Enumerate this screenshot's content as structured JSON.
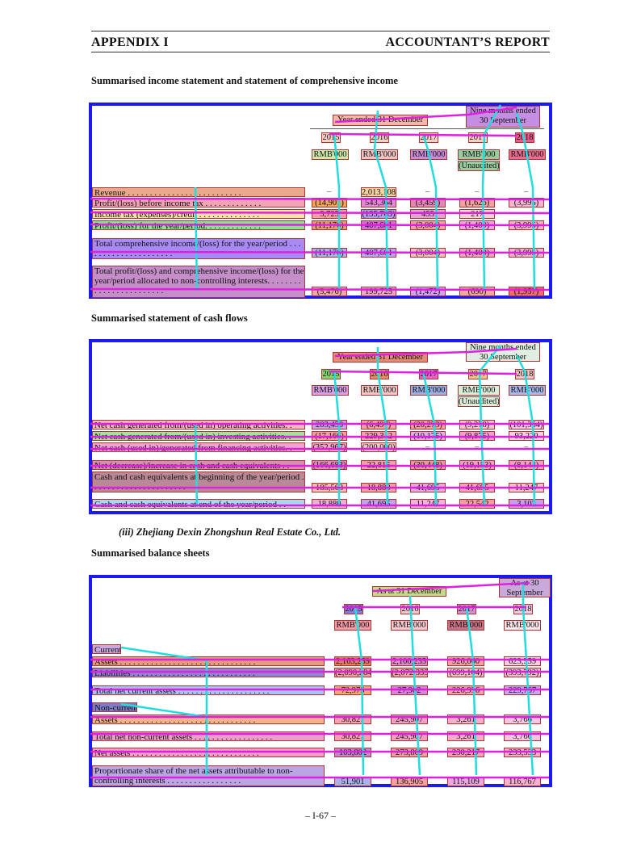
{
  "header": {
    "left": "APPENDIX I",
    "right": "ACCOUNTANT’S REPORT"
  },
  "income": {
    "title": "Summarised income statement and statement of comprehensive income",
    "group_label": "Year ended 31 December",
    "nine_label": "Nine months ended 30 September",
    "years": [
      "2015",
      "2016",
      "2017",
      "2017",
      "2018"
    ],
    "units": [
      "RMB'000",
      "RMB'000",
      "RMB'000",
      "RMB'000",
      "RMB'000"
    ],
    "unaudited": "(Unaudited)",
    "rows": [
      {
        "label": "Revenue . . . . . . . . . . . . . . . . . . . . . . . . . .",
        "values": [
          "–",
          "2,013,108",
          "–",
          "–",
          "–"
        ]
      },
      {
        "label": "Profit/(loss) before income tax . . . . . . . . . . . . .",
        "values": "(14,901)|543,364|(3,459)|(1,626)|(3,995)"
      },
      {
        "label": "Income tax (expenses)/credit . . . . . . . . . . . . . .",
        "values": "3,725|(135,763)|455|217|–"
      },
      {
        "label": "Profit/(loss) for the year/period. . . . . . . . . . . . .",
        "values": "(11,176)|407,601|(3,004)|(1,409)|(3,995)"
      },
      {
        "label": "Total comprehensive income/(loss) for the year/period . . . . . . . . . . . . . . . . . . . . .",
        "values": "(11,176)|407,601|(3,004)|(1,409)|(3,995)"
      },
      {
        "label": "Total profit/(loss) and comprehensive income/(loss) for the year/period allocated to non-controlling interests. . . . . . . . . . . . . . . . . . . . . . . .",
        "values": "(5,476)|199,725|(1,472)|(690)|(1,957)"
      }
    ]
  },
  "cash": {
    "title": "Summarised statement of cash flows",
    "group_label": "Year ended 31 December",
    "nine_label": "Nine months ended 30 September",
    "years": [
      "2015",
      "2016",
      "2017",
      "2017",
      "2018"
    ],
    "units": [
      "RMB'000",
      "RMB'000",
      "RMB'000",
      "RMB'000",
      "RMB'000"
    ],
    "unaudited": "(Unaudited)",
    "rows": [
      {
        "label": "Net cash generated from/(used in) operating activities. .",
        "values": "203,450|(6,497)|(20,273)|(9,278)|(101,364)"
      },
      {
        "label": "Net cash generated from/(used in) investing activities. .",
        "values": "(17,166)|229,312|(10,175)|(9,875)|93,220"
      },
      {
        "label": "Net cash (used in)/generated from financing activities. .",
        "values": "(352,967)|(200,000)|–|–|–"
      },
      {
        "label": "Net (decrease)/increase in cash and cash equivalents . .",
        "values": "(166,683)|22,815|(30,448)|(19,153)|(8,144)"
      },
      {
        "label": "Cash and cash equivalents at beginning of the year/period . . . . . . . . . . . . . . . . . . . . . .",
        "values": "185,563|18,880|41,695|41,695|11,247"
      },
      {
        "label": "Cash and cash equivalents at end of the year/period . .",
        "values": "18,880|41,695|11,247|22,542|3,103"
      }
    ]
  },
  "sub": {
    "text": "(iii)  Zhejiang Dexin Zhongshun Real Estate Co., Ltd."
  },
  "balance": {
    "title": "Summarised balance sheets",
    "group_label": "As at 31 December",
    "asat_label": "As at 30 September",
    "years": [
      "2015",
      "2016",
      "2017",
      "2018"
    ],
    "units": [
      "RMB'000",
      "RMB'000",
      "RMB'000",
      "RMB'000"
    ],
    "rows": [
      {
        "label": "Current",
        "values": ""
      },
      {
        "label": "Assets . . . . . . . . . . . . . . . . . . . . . . . . . . . . . . .",
        "values": "2,163,259|2,100,235|926,060|623,559"
      },
      {
        "label": "Liabilities . . . . . . . . . . . . . . . . . . . . . . . . . . . .",
        "values": "(2,090,284)|(2,072,333)|(699,104)|(393,792)"
      },
      {
        "label": "Total net current assets . . . . . . . . . . . . . . . . . . . . .",
        "values": "72,975|27,902|226,956|229,767"
      },
      {
        "label": "Non-current",
        "values": ""
      },
      {
        "label": "Assets . . . . . . . . . . . . . . . . . . . . . . . . . . . . . . .",
        "values": "30,827|245,907|3,261|3,766"
      },
      {
        "label": "Total net non-current assets . . . . . . . . . . . . . . . . . .",
        "values": "30,827|245,907|3,261|3,766"
      },
      {
        "label": "Net assets . . . . . . . . . . . . . . . . . . . . . . . . . . . . .",
        "values": "103,802|273,809|230,217|233,533"
      },
      {
        "label": "Proportionate share of the net assets attributable to non-controlling interests . . . . . . . . . . . . . . . . .",
        "values": "51,901|136,905|115,109|116,767"
      }
    ]
  },
  "footer": {
    "page": "– I-67 –"
  },
  "colors": {
    "frame": "#1a1aee",
    "cyan": "#22dddd",
    "magenta": "#e020e0"
  }
}
